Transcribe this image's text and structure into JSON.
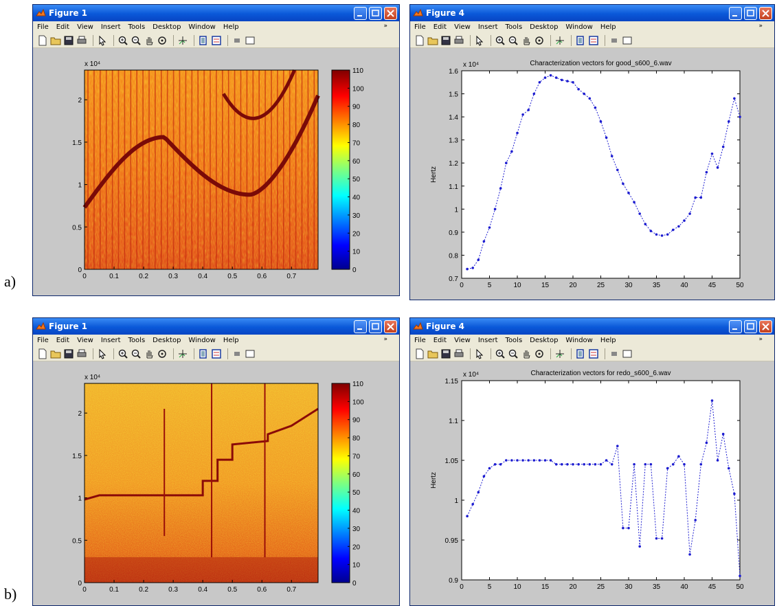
{
  "panel_labels": [
    "a)",
    "b)"
  ],
  "menu": [
    "File",
    "Edit",
    "View",
    "Insert",
    "Tools",
    "Desktop",
    "Window",
    "Help"
  ],
  "menu_end": "»",
  "windows": {
    "a_left": {
      "title": "Figure 1",
      "exponent": "x 10⁴",
      "xticks": [
        "0",
        "0.1",
        "0.2",
        "0.3",
        "0.4",
        "0.5",
        "0.6",
        "0.7"
      ],
      "yticks": [
        "0",
        "0.5",
        "1",
        "1.5",
        "2"
      ],
      "colorbar_ticks": [
        "110",
        "100",
        "90",
        "80",
        "70",
        "60",
        "50",
        "40",
        "30",
        "20",
        "10",
        "0"
      ]
    },
    "a_right": {
      "title": "Figure 4",
      "exponent": "x 10⁴"
    },
    "b_left": {
      "title": "Figure 1",
      "exponent": "x 10⁴",
      "xticks": [
        "0",
        "0.1",
        "0.2",
        "0.3",
        "0.4",
        "0.5",
        "0.6",
        "0.7"
      ],
      "yticks": [
        "0",
        "0.5",
        "1",
        "1.5",
        "2"
      ],
      "colorbar_ticks": [
        "110",
        "100",
        "90",
        "80",
        "70",
        "60",
        "50",
        "40",
        "30",
        "20",
        "10",
        "0"
      ]
    },
    "b_right": {
      "title": "Figure 4",
      "exponent": "x 10⁴"
    }
  },
  "chart_data": [
    {
      "type": "line",
      "title": "Characterization vectors for good_s600_6.wav",
      "xlabel": "",
      "ylabel": "Hertz",
      "xlim": [
        0,
        50
      ],
      "ylim": [
        0.7,
        1.6
      ],
      "xticks": [
        0,
        5,
        10,
        15,
        20,
        25,
        30,
        35,
        40,
        45,
        50
      ],
      "yticks": [
        0.7,
        0.8,
        0.9,
        1.0,
        1.1,
        1.2,
        1.3,
        1.4,
        1.5,
        1.6
      ],
      "ytick_labels": [
        "0.7",
        "0.8",
        "0.9",
        "1",
        "1.1",
        "1.2",
        "1.3",
        "1.4",
        "1.5",
        "1.6"
      ],
      "exponent": "x 10^4",
      "color": "#1c1cd0",
      "x": [
        1,
        2,
        3,
        4,
        5,
        6,
        7,
        8,
        9,
        10,
        11,
        12,
        13,
        14,
        15,
        16,
        17,
        18,
        19,
        20,
        21,
        22,
        23,
        24,
        25,
        26,
        27,
        28,
        29,
        30,
        31,
        32,
        33,
        34,
        35,
        36,
        37,
        38,
        39,
        40,
        41,
        42,
        43,
        44,
        45,
        46,
        47,
        48,
        49,
        50
      ],
      "y": [
        0.74,
        0.745,
        0.78,
        0.86,
        0.92,
        1.0,
        1.09,
        1.2,
        1.25,
        1.33,
        1.41,
        1.43,
        1.5,
        1.55,
        1.57,
        1.58,
        1.57,
        1.56,
        1.555,
        1.55,
        1.52,
        1.5,
        1.48,
        1.44,
        1.38,
        1.31,
        1.23,
        1.17,
        1.11,
        1.07,
        1.03,
        0.98,
        0.935,
        0.905,
        0.89,
        0.885,
        0.89,
        0.91,
        0.925,
        0.95,
        0.98,
        1.05,
        1.05,
        1.16,
        1.24,
        1.18,
        1.27,
        1.38,
        1.48,
        1.4
      ]
    },
    {
      "type": "line",
      "title": "Characterization vectors for redo_s600_6.wav",
      "xlabel": "",
      "ylabel": "Hertz",
      "xlim": [
        0,
        50
      ],
      "ylim": [
        0.9,
        1.15
      ],
      "xticks": [
        0,
        5,
        10,
        15,
        20,
        25,
        30,
        35,
        40,
        45,
        50
      ],
      "yticks": [
        0.9,
        0.95,
        1.0,
        1.05,
        1.1,
        1.15
      ],
      "ytick_labels": [
        "0.9",
        "0.95",
        "1",
        "1.05",
        "1.1",
        "1.15"
      ],
      "exponent": "x 10^4",
      "color": "#1c1cd0",
      "x": [
        1,
        2,
        3,
        4,
        5,
        6,
        7,
        8,
        9,
        10,
        11,
        12,
        13,
        14,
        15,
        16,
        17,
        18,
        19,
        20,
        21,
        22,
        23,
        24,
        25,
        26,
        27,
        28,
        29,
        30,
        31,
        32,
        33,
        34,
        35,
        36,
        37,
        38,
        39,
        40,
        41,
        42,
        43,
        44,
        45,
        46,
        47,
        48,
        49,
        50
      ],
      "y": [
        0.98,
        0.995,
        1.01,
        1.03,
        1.04,
        1.045,
        1.045,
        1.05,
        1.05,
        1.05,
        1.05,
        1.05,
        1.05,
        1.05,
        1.05,
        1.05,
        1.045,
        1.045,
        1.045,
        1.045,
        1.045,
        1.045,
        1.045,
        1.045,
        1.045,
        1.05,
        1.045,
        1.068,
        0.965,
        0.965,
        1.045,
        0.942,
        1.045,
        1.045,
        0.952,
        0.952,
        1.04,
        1.045,
        1.055,
        1.045,
        0.932,
        0.975,
        1.045,
        1.072,
        1.125,
        1.05,
        1.083,
        1.04,
        1.008,
        0.905
      ]
    }
  ]
}
